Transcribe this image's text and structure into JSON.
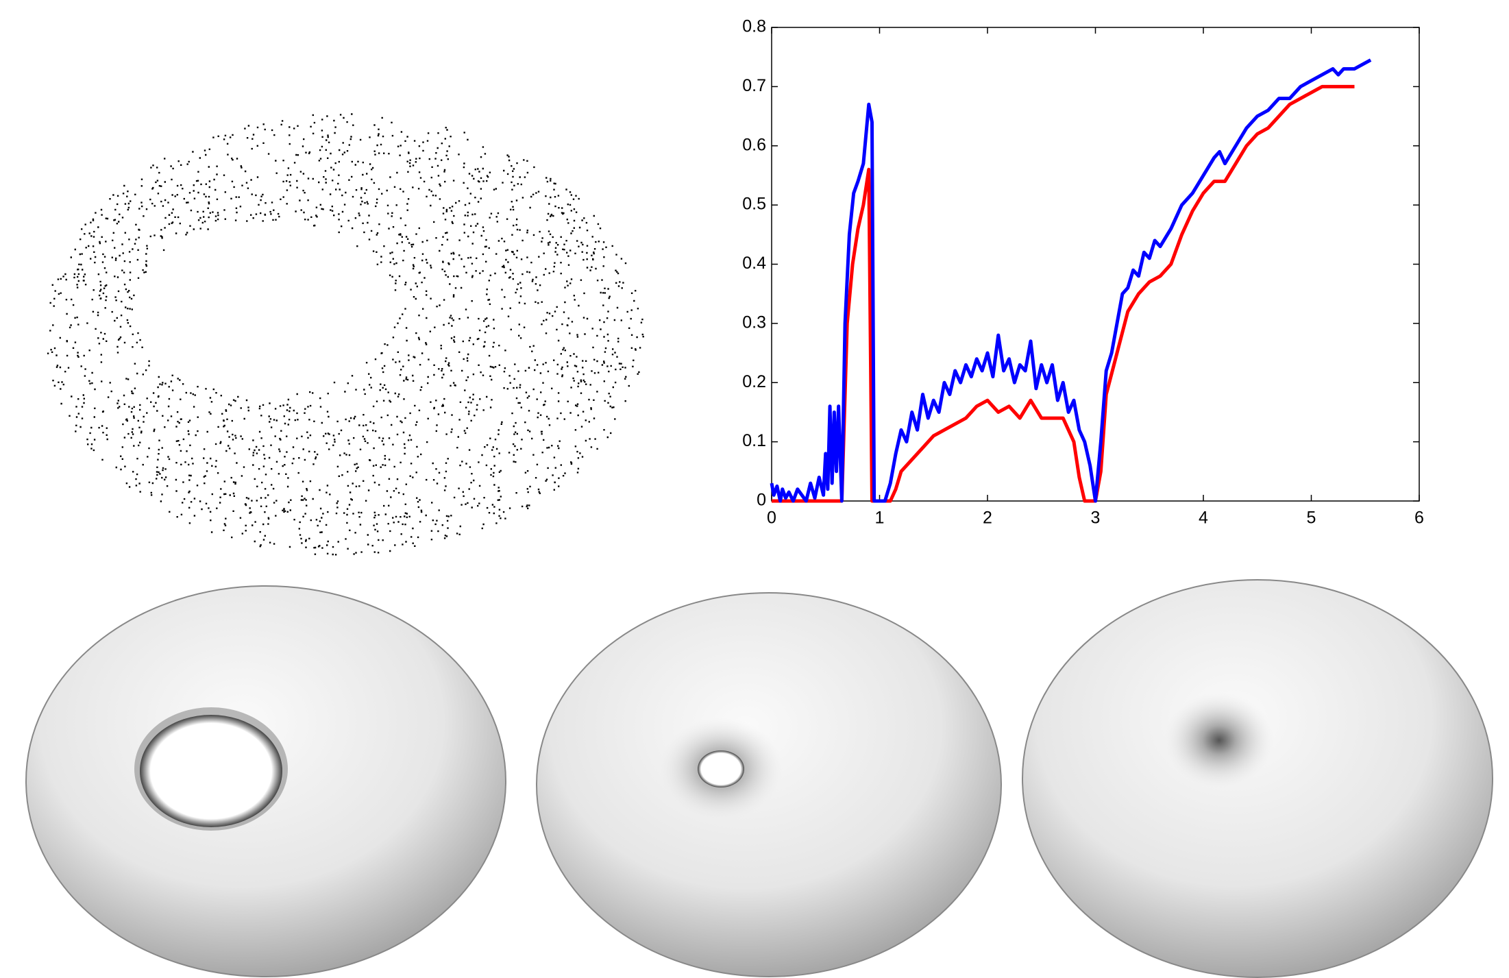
{
  "chart_data": {
    "type": "line",
    "xlim": [
      0,
      6
    ],
    "xticks": [
      0,
      1,
      2,
      3,
      4,
      5,
      6
    ],
    "ylim": [
      0,
      0.8
    ],
    "yticks": [
      0,
      0.1,
      0.2,
      0.3,
      0.4,
      0.5,
      0.6,
      0.7,
      0.8
    ],
    "grid": false,
    "series": [
      {
        "color": "#0000ff",
        "x": [
          0,
          0.02,
          0.05,
          0.08,
          0.1,
          0.13,
          0.16,
          0.2,
          0.24,
          0.28,
          0.32,
          0.36,
          0.4,
          0.44,
          0.48,
          0.5,
          0.52,
          0.54,
          0.56,
          0.58,
          0.6,
          0.62,
          0.65,
          0.68,
          0.72,
          0.76,
          0.8,
          0.85,
          0.9,
          0.93,
          0.95,
          1.05,
          1.1,
          1.15,
          1.2,
          1.25,
          1.3,
          1.35,
          1.4,
          1.45,
          1.5,
          1.55,
          1.6,
          1.65,
          1.7,
          1.75,
          1.8,
          1.85,
          1.9,
          1.95,
          2.0,
          2.05,
          2.1,
          2.15,
          2.2,
          2.25,
          2.3,
          2.35,
          2.4,
          2.45,
          2.5,
          2.55,
          2.6,
          2.65,
          2.7,
          2.75,
          2.8,
          2.85,
          2.9,
          2.95,
          3.0,
          3.05,
          3.1,
          3.15,
          3.2,
          3.25,
          3.3,
          3.35,
          3.4,
          3.45,
          3.5,
          3.55,
          3.6,
          3.7,
          3.8,
          3.9,
          4.0,
          4.1,
          4.15,
          4.2,
          4.3,
          4.4,
          4.5,
          4.6,
          4.7,
          4.8,
          4.9,
          5.0,
          5.1,
          5.2,
          5.25,
          5.3,
          5.4,
          5.5,
          5.55
        ],
        "values": [
          0.03,
          0.01,
          0.025,
          0.0,
          0.02,
          0.005,
          0.015,
          0.0,
          0.02,
          0.01,
          0.0,
          0.03,
          0.005,
          0.04,
          0.01,
          0.08,
          0.02,
          0.16,
          0.03,
          0.15,
          0.05,
          0.16,
          0.0,
          0.3,
          0.45,
          0.52,
          0.54,
          0.57,
          0.67,
          0.64,
          0.0,
          0.0,
          0.03,
          0.08,
          0.12,
          0.1,
          0.15,
          0.12,
          0.18,
          0.14,
          0.17,
          0.15,
          0.2,
          0.18,
          0.22,
          0.2,
          0.23,
          0.21,
          0.24,
          0.22,
          0.25,
          0.21,
          0.28,
          0.22,
          0.24,
          0.2,
          0.23,
          0.22,
          0.27,
          0.19,
          0.23,
          0.2,
          0.23,
          0.17,
          0.2,
          0.15,
          0.17,
          0.12,
          0.1,
          0.06,
          0.0,
          0.1,
          0.22,
          0.25,
          0.3,
          0.35,
          0.36,
          0.39,
          0.38,
          0.42,
          0.41,
          0.44,
          0.43,
          0.46,
          0.5,
          0.52,
          0.55,
          0.58,
          0.59,
          0.57,
          0.6,
          0.63,
          0.65,
          0.66,
          0.68,
          0.68,
          0.7,
          0.71,
          0.72,
          0.73,
          0.72,
          0.73,
          0.73,
          0.74,
          0.745
        ]
      },
      {
        "color": "#ff0000",
        "x": [
          0,
          0.65,
          0.7,
          0.75,
          0.8,
          0.85,
          0.9,
          0.93,
          1.1,
          1.15,
          1.2,
          1.3,
          1.4,
          1.5,
          1.6,
          1.7,
          1.8,
          1.9,
          2.0,
          2.1,
          2.2,
          2.3,
          2.4,
          2.5,
          2.6,
          2.7,
          2.8,
          2.85,
          2.9,
          3.0,
          3.05,
          3.1,
          3.2,
          3.3,
          3.4,
          3.5,
          3.6,
          3.7,
          3.8,
          3.9,
          4.0,
          4.1,
          4.2,
          4.3,
          4.4,
          4.5,
          4.6,
          4.7,
          4.8,
          4.9,
          5.0,
          5.1,
          5.2,
          5.3,
          5.4
        ],
        "values": [
          0.0,
          0.0,
          0.3,
          0.4,
          0.46,
          0.5,
          0.56,
          0.0,
          0.0,
          0.02,
          0.05,
          0.07,
          0.09,
          0.11,
          0.12,
          0.13,
          0.14,
          0.16,
          0.17,
          0.15,
          0.16,
          0.14,
          0.17,
          0.14,
          0.14,
          0.14,
          0.1,
          0.04,
          0.0,
          0.0,
          0.05,
          0.18,
          0.25,
          0.32,
          0.35,
          0.37,
          0.38,
          0.4,
          0.45,
          0.49,
          0.52,
          0.54,
          0.54,
          0.57,
          0.6,
          0.62,
          0.63,
          0.65,
          0.67,
          0.68,
          0.69,
          0.7,
          0.7,
          0.7,
          0.7
        ]
      }
    ]
  }
}
